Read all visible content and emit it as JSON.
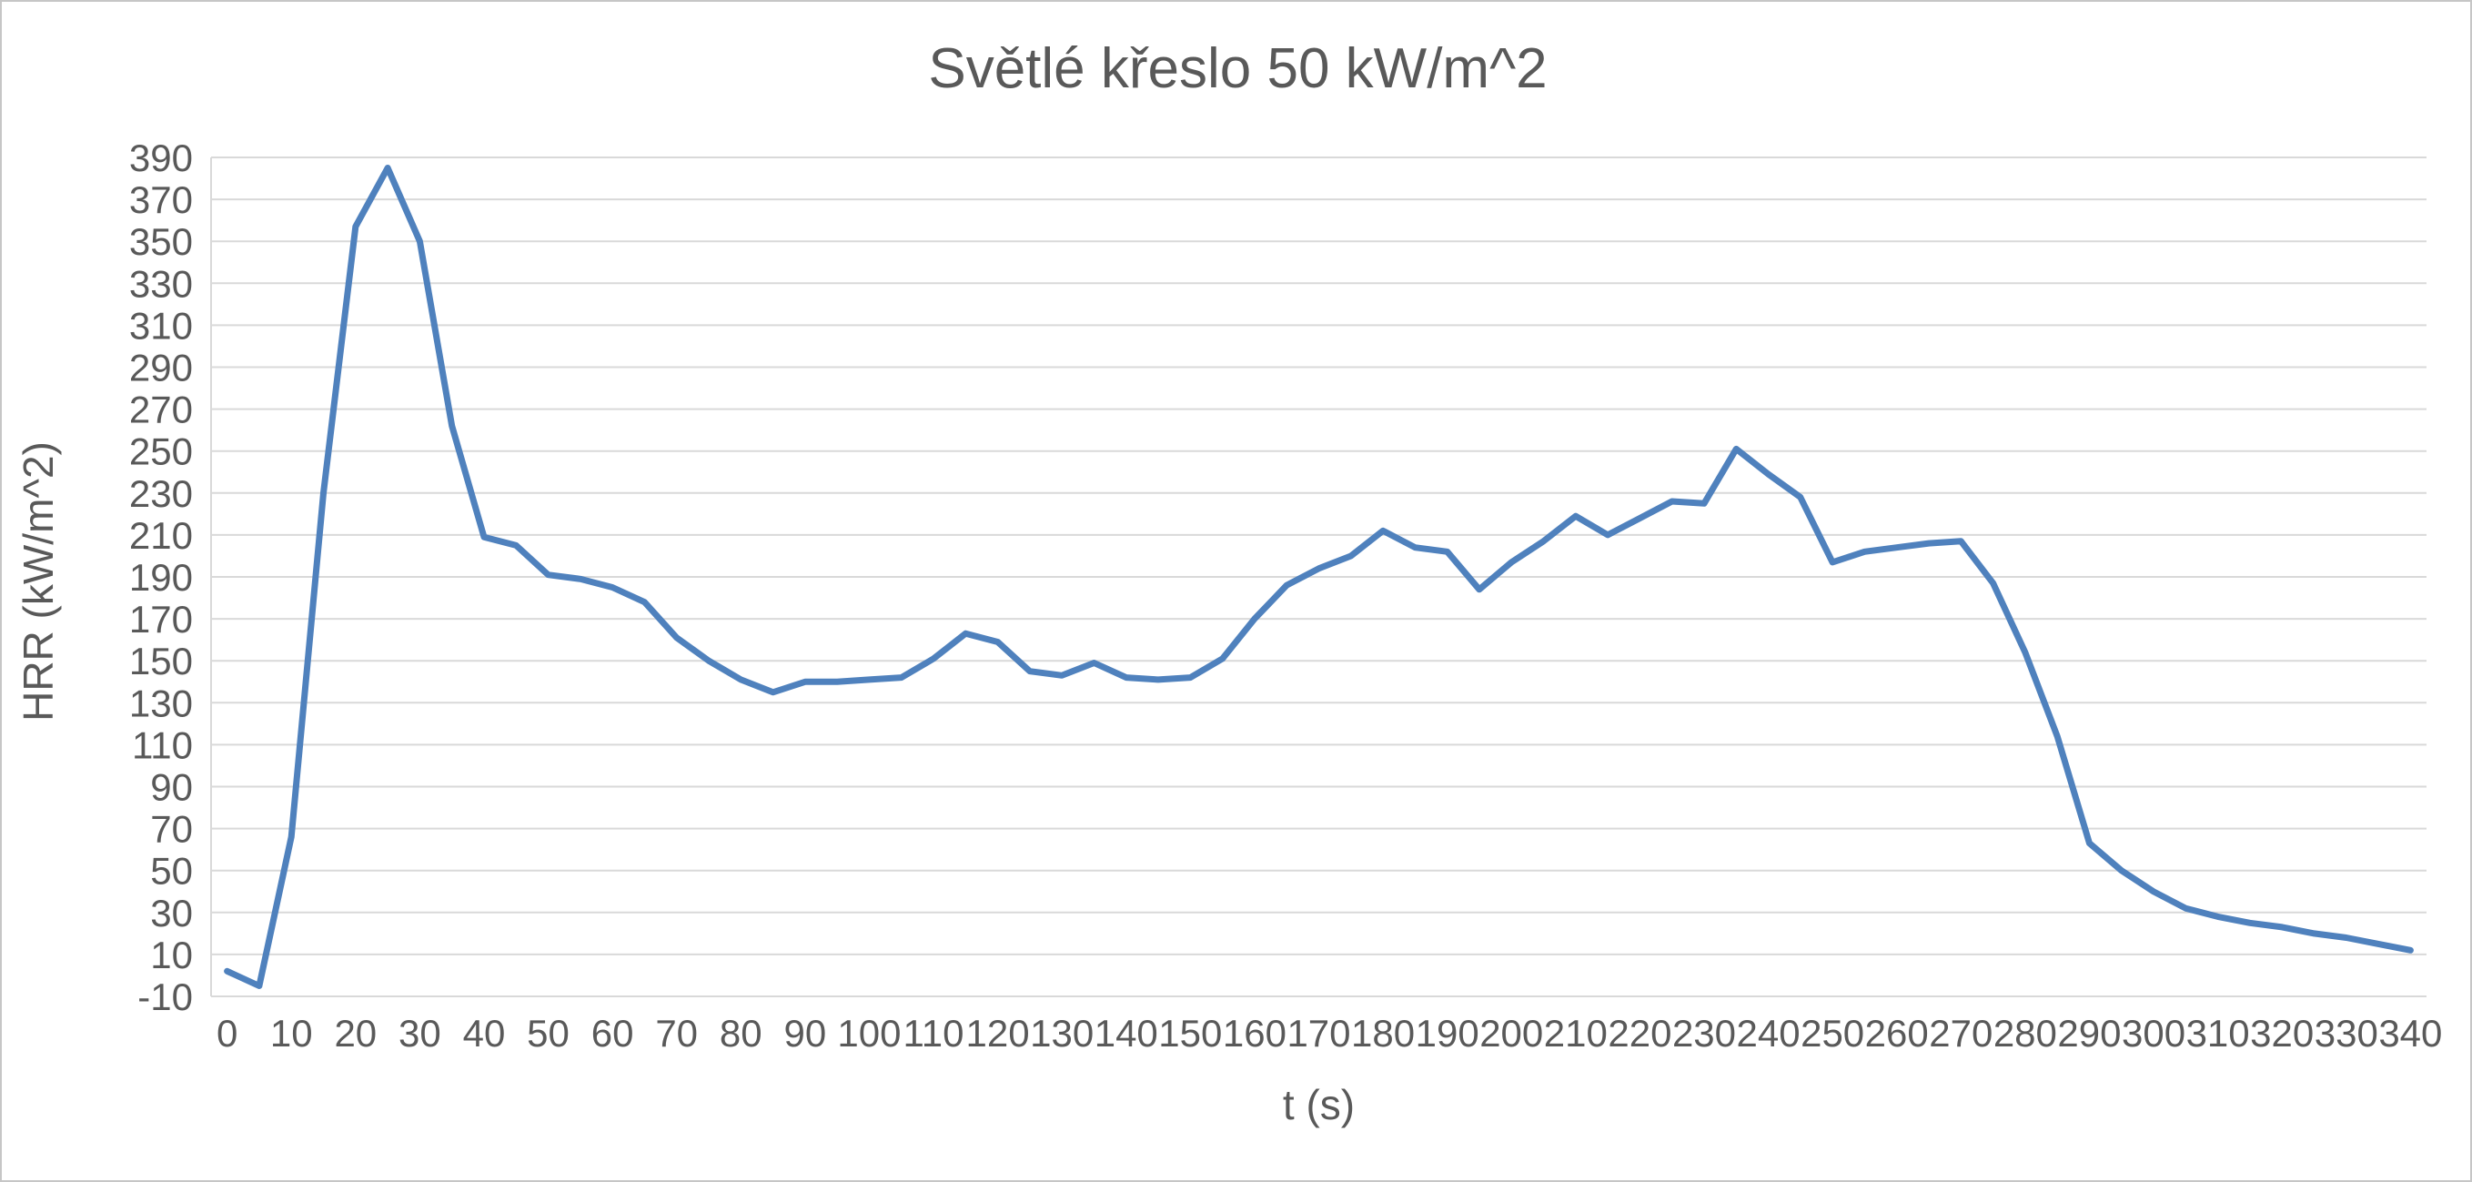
{
  "window": {
    "background": "#ffffff",
    "border_color": "#c6c6c6"
  },
  "chart_data": {
    "type": "line",
    "title": "Světlé křeslo 50 kW/m^2",
    "xlabel": "t (s)",
    "ylabel": "HRR (kW/m^2)",
    "x": [
      0,
      5,
      10,
      15,
      20,
      25,
      30,
      35,
      40,
      45,
      50,
      55,
      60,
      65,
      70,
      75,
      80,
      85,
      90,
      95,
      100,
      105,
      110,
      115,
      120,
      125,
      130,
      135,
      140,
      145,
      150,
      155,
      160,
      165,
      170,
      175,
      180,
      185,
      190,
      195,
      200,
      205,
      210,
      215,
      220,
      225,
      230,
      235,
      240,
      245,
      250,
      255,
      260,
      265,
      270,
      275,
      280,
      285,
      290,
      295,
      300,
      305,
      310,
      315,
      320,
      325,
      330,
      335,
      340
    ],
    "series": [
      {
        "name": "HRR",
        "values": [
          2,
          -5,
          66,
          230,
          357,
          385,
          350,
          262,
          209,
          205,
          191,
          189,
          185,
          178,
          161,
          150,
          141,
          135,
          140,
          140,
          141,
          142,
          151,
          163,
          159,
          145,
          143,
          149,
          142,
          141,
          142,
          151,
          170,
          186,
          194,
          200,
          212,
          204,
          202,
          184,
          197,
          207,
          219,
          210,
          218,
          226,
          225,
          251,
          239,
          228,
          197,
          202,
          204,
          206,
          207,
          187,
          154,
          114,
          63,
          50,
          40,
          32,
          28,
          25,
          23,
          20,
          18,
          15,
          12
        ]
      }
    ],
    "ylim": [
      -10,
      390
    ],
    "y_ticks": [
      -10,
      10,
      30,
      50,
      70,
      90,
      110,
      130,
      150,
      170,
      190,
      210,
      230,
      250,
      270,
      290,
      310,
      330,
      350,
      370,
      390
    ],
    "x_tick_every": 2,
    "grid": "horizontal",
    "legend": "none",
    "line_color": "#4F81BD",
    "grid_color": "#D9D9D9",
    "text_color": "#595959",
    "line_width": 7
  }
}
